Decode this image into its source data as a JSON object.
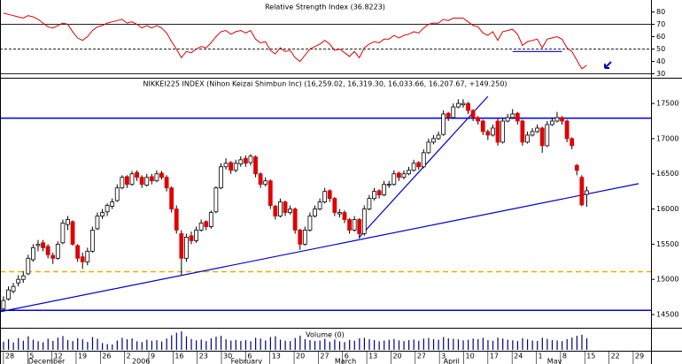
{
  "chart_data": [
    {
      "type": "line",
      "title": "Relative Strength Index (36.8223)",
      "color": "#e00000",
      "values": [
        79,
        78,
        77,
        76,
        75,
        77,
        76,
        74,
        71,
        68,
        67,
        69,
        71,
        70,
        64,
        59,
        57,
        60,
        65,
        68,
        69,
        71,
        72,
        73,
        74,
        71,
        72,
        70,
        67,
        69,
        67,
        69,
        67,
        63,
        56,
        50,
        43,
        48,
        47,
        50,
        52,
        51,
        55,
        60,
        64,
        65,
        62,
        64,
        65,
        63,
        65,
        58,
        55,
        56,
        49,
        46,
        51,
        48,
        49,
        43,
        40,
        45,
        50,
        52,
        54,
        57,
        54,
        49,
        50,
        47,
        44,
        48,
        43,
        51,
        54,
        56,
        55,
        58,
        58,
        61,
        59,
        61,
        62,
        64,
        63,
        67,
        70,
        71,
        71,
        74,
        73,
        75,
        75,
        75,
        72,
        69,
        68,
        63,
        61,
        64,
        57,
        64,
        65,
        66,
        62,
        53,
        56,
        57,
        58,
        51,
        58,
        59,
        60,
        58,
        51,
        48,
        41,
        34,
        36.8223
      ],
      "xlim": [
        -0.7,
        131
      ],
      "ylim": [
        27.5,
        87.5
      ],
      "yticks": [
        30,
        40,
        50,
        60,
        70,
        80
      ],
      "hlines": [
        70,
        50,
        30
      ],
      "lines": [
        {
          "x": [
            103,
            113
          ],
          "y": [
            48,
            48
          ],
          "color": "#0000cc"
        }
      ]
    },
    {
      "type": "candlestick",
      "title": "NIKKEI225 INDEX (Nihon Keizai Shimbun Inc) (16,259.02, 16,319.30, 16,033.66, 16,207.67, +149.250)",
      "open": [
        14580,
        14720,
        14830,
        14950,
        15000,
        15080,
        15280,
        15480,
        15520,
        15470,
        15340,
        15300,
        15520,
        15780,
        15820,
        15480,
        15320,
        15250,
        15400,
        15720,
        15900,
        15960,
        16040,
        16120,
        16300,
        16460,
        16350,
        16520,
        16450,
        16340,
        16460,
        16400,
        16510,
        16450,
        16300,
        16000,
        15650,
        15300,
        15620,
        15550,
        15700,
        15820,
        15750,
        15960,
        16300,
        16600,
        16660,
        16550,
        16640,
        16720,
        16660,
        16740,
        16500,
        16350,
        16400,
        16040,
        15900,
        16100,
        15950,
        16000,
        15700,
        15500,
        15700,
        15900,
        16000,
        16100,
        16260,
        16150,
        15930,
        15950,
        15850,
        15700,
        15850,
        15650,
        16000,
        16150,
        16260,
        16200,
        16340,
        16350,
        16510,
        16450,
        16500,
        16550,
        16660,
        16600,
        16800,
        16950,
        17000,
        17060,
        17360,
        17300,
        17450,
        17480,
        17500,
        17400,
        17300,
        17250,
        17100,
        17050,
        17250,
        16950,
        17250,
        17300,
        17360,
        17250,
        16950,
        17050,
        17100,
        17150,
        16900,
        17200,
        17250,
        17300,
        17250,
        17000,
        16620,
        16450,
        16259.02
      ],
      "high": [
        14760,
        14900,
        14950,
        15060,
        15120,
        15350,
        15500,
        15560,
        15560,
        15500,
        15380,
        15540,
        15850,
        15900,
        15840,
        15500,
        15380,
        15450,
        15750,
        15950,
        16000,
        16080,
        16150,
        16350,
        16480,
        16480,
        16540,
        16550,
        16480,
        16500,
        16500,
        16550,
        16540,
        16480,
        16320,
        16050,
        15700,
        15650,
        15680,
        15750,
        15850,
        15840,
        15980,
        16320,
        16650,
        16720,
        16680,
        16700,
        16750,
        16760,
        16780,
        16760,
        16520,
        16450,
        16420,
        16060,
        16150,
        16120,
        16050,
        16020,
        15720,
        15750,
        15950,
        16050,
        16150,
        16300,
        16280,
        16170,
        16000,
        15980,
        15870,
        15900,
        15870,
        16050,
        16200,
        16300,
        16280,
        16400,
        16400,
        16550,
        16530,
        16550,
        16600,
        16700,
        16680,
        16850,
        17000,
        17050,
        17100,
        17400,
        17380,
        17500,
        17560,
        17560,
        17520,
        17420,
        17320,
        17270,
        17130,
        17200,
        17280,
        17300,
        17350,
        17420,
        17380,
        17270,
        17100,
        17150,
        17200,
        17170,
        17250,
        17300,
        17380,
        17320,
        17270,
        17020,
        16640,
        16480,
        16319.3
      ],
      "low": [
        14560,
        14700,
        14800,
        14900,
        14950,
        15060,
        15250,
        15400,
        15400,
        15300,
        15220,
        15280,
        15500,
        15700,
        15480,
        15250,
        15150,
        15200,
        15380,
        15700,
        15860,
        15900,
        16000,
        16100,
        16280,
        16300,
        16330,
        16400,
        16300,
        16320,
        16350,
        16380,
        16420,
        16250,
        15950,
        15650,
        15060,
        15250,
        15500,
        15520,
        15680,
        15700,
        15720,
        15940,
        16280,
        16560,
        16500,
        16520,
        16600,
        16600,
        16620,
        16450,
        16300,
        16320,
        16000,
        15850,
        15880,
        15900,
        15920,
        15650,
        15420,
        15480,
        15680,
        15880,
        15980,
        16080,
        16100,
        15900,
        15880,
        15800,
        15650,
        15680,
        15580,
        15620,
        15980,
        16120,
        16150,
        16180,
        16300,
        16330,
        16400,
        16420,
        16480,
        16530,
        16560,
        16580,
        16780,
        16920,
        16980,
        17040,
        17250,
        17280,
        17430,
        17440,
        17350,
        17250,
        17200,
        17050,
        16980,
        17030,
        16900,
        16930,
        17230,
        17280,
        17200,
        16900,
        16930,
        17030,
        17080,
        16800,
        16880,
        17180,
        17230,
        17200,
        16950,
        16850,
        16480,
        16040,
        16033.66
      ],
      "close": [
        14700,
        14850,
        14900,
        15000,
        15050,
        15300,
        15450,
        15500,
        15450,
        15350,
        15300,
        15500,
        15800,
        15850,
        15500,
        15300,
        15250,
        15400,
        15700,
        15900,
        15950,
        16050,
        16100,
        16300,
        16450,
        16350,
        16500,
        16450,
        16350,
        16450,
        16400,
        16500,
        16450,
        16300,
        16000,
        15700,
        15300,
        15600,
        15550,
        15700,
        15800,
        15750,
        15950,
        16300,
        16600,
        16650,
        16550,
        16650,
        16700,
        16650,
        16750,
        16500,
        16350,
        16400,
        16050,
        15900,
        16100,
        15950,
        16000,
        15700,
        15500,
        15700,
        15900,
        16000,
        16100,
        16250,
        16150,
        15950,
        15950,
        15850,
        15700,
        15850,
        15650,
        16000,
        16150,
        16250,
        16200,
        16350,
        16350,
        16500,
        16450,
        16500,
        16550,
        16650,
        16600,
        16800,
        16950,
        17000,
        17050,
        17350,
        17300,
        17450,
        17500,
        17500,
        17400,
        17300,
        17250,
        17100,
        17050,
        17150,
        16950,
        17250,
        17300,
        17350,
        17250,
        16950,
        17050,
        17100,
        17150,
        16900,
        17200,
        17250,
        17300,
        17250,
        17000,
        16900,
        16550,
        16058.42,
        16207.67
      ],
      "up_color": "#ffffff",
      "down_color": "#e00000",
      "xlim": [
        -0.7,
        131
      ],
      "ylim": [
        14325,
        17840
      ],
      "yticks": [
        14500,
        15000,
        15500,
        16000,
        16500,
        17000,
        17500
      ],
      "hlines": [
        {
          "y": 17290,
          "color": "#0000ff"
        },
        {
          "y": 14560,
          "color": "#0000ff"
        },
        {
          "y": 15110,
          "color": "#e8b000",
          "dash": true
        }
      ],
      "lines": [
        {
          "x": [
            -0.7,
            128.5
          ],
          "y": [
            14540,
            16360
          ],
          "color": "#0000cc"
        },
        {
          "x": [
            72,
            98
          ],
          "y": [
            15600,
            17600
          ],
          "color": "#0000cc"
        }
      ]
    },
    {
      "type": "bar",
      "title": "Volume (0)",
      "color": "#000080",
      "values": [
        42,
        55,
        38,
        61,
        47,
        70,
        52,
        44,
        39,
        58,
        46,
        63,
        71,
        50,
        45,
        60,
        54,
        41,
        66,
        57,
        35,
        30,
        28,
        48,
        62,
        55,
        59,
        44,
        40,
        52,
        47,
        50,
        43,
        58,
        75,
        88,
        95,
        70,
        56,
        49,
        53,
        45,
        60,
        68,
        72,
        55,
        48,
        51,
        46,
        50,
        44,
        62,
        58,
        49,
        66,
        70,
        52,
        47,
        45,
        61,
        73,
        55,
        50,
        46,
        48,
        57,
        42,
        53,
        44,
        40,
        51,
        47,
        59,
        62,
        55,
        50,
        44,
        48,
        52,
        56,
        49,
        45,
        50,
        53,
        47,
        58,
        61,
        55,
        52,
        66,
        60,
        57,
        54,
        49,
        52,
        58,
        55,
        62,
        50,
        47,
        63,
        58,
        52,
        49,
        45,
        60,
        54,
        48,
        46,
        62,
        57,
        50,
        48,
        45,
        55,
        63,
        72,
        78,
        60
      ],
      "xlim": [
        -0.7,
        131
      ],
      "ylim": [
        0,
        100
      ],
      "xticks": [
        {
          "value": 0,
          "label": "28"
        },
        {
          "value": 4.9,
          "label": "5"
        },
        {
          "value": 9.8,
          "label": "12"
        },
        {
          "value": 14.7,
          "label": "19"
        },
        {
          "value": 19.6,
          "label": "26"
        },
        {
          "value": 24.5,
          "label": "2"
        },
        {
          "value": 29.4,
          "label": "9"
        },
        {
          "value": 34.3,
          "label": "16"
        },
        {
          "value": 39.2,
          "label": "23"
        },
        {
          "value": 44.1,
          "label": "30"
        },
        {
          "value": 49,
          "label": "6"
        },
        {
          "value": 53.9,
          "label": "13"
        },
        {
          "value": 58.8,
          "label": "20"
        },
        {
          "value": 63.7,
          "label": "27"
        },
        {
          "value": 68.6,
          "label": "6"
        },
        {
          "value": 73.5,
          "label": "13"
        },
        {
          "value": 78.4,
          "label": "20"
        },
        {
          "value": 83.3,
          "label": "27"
        },
        {
          "value": 88.2,
          "label": "3"
        },
        {
          "value": 93.1,
          "label": "10"
        },
        {
          "value": 98,
          "label": "17"
        },
        {
          "value": 102.9,
          "label": "24"
        },
        {
          "value": 107.8,
          "label": "1"
        },
        {
          "value": 112.7,
          "label": "8"
        },
        {
          "value": 117.6,
          "label": "15"
        },
        {
          "value": 122.5,
          "label": "22"
        },
        {
          "value": 127.4,
          "label": "29"
        }
      ],
      "month_ticks": [
        {
          "value": 5,
          "label": "December"
        },
        {
          "value": 26,
          "label": "2006"
        },
        {
          "value": 46,
          "label": "February"
        },
        {
          "value": 67,
          "label": "March"
        },
        {
          "value": 89,
          "label": "April"
        },
        {
          "value": 110,
          "label": "May"
        }
      ]
    }
  ]
}
